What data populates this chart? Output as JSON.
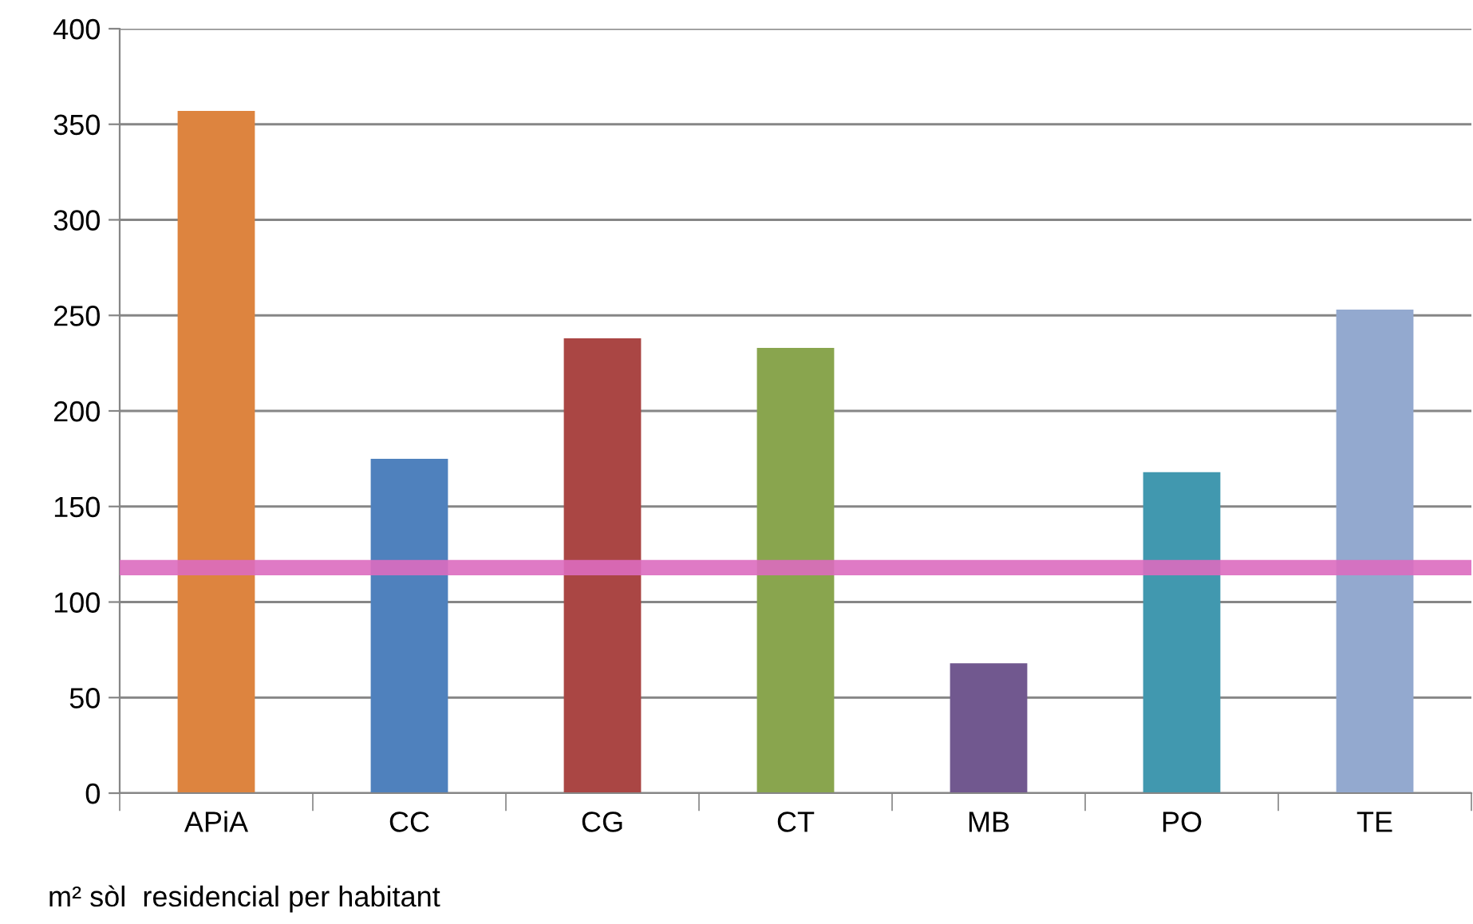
{
  "chart_data": {
    "type": "bar",
    "categories": [
      "APiA",
      "CC",
      "CG",
      "CT",
      "MB",
      "PO",
      "TE"
    ],
    "values": [
      357,
      175,
      238,
      233,
      68,
      168,
      253
    ],
    "colors": [
      "#dd843f",
      "#4f81bd",
      "#aa4644",
      "#89a54e",
      "#71588f",
      "#4198af",
      "#93a9cf"
    ],
    "ylim": [
      0,
      400
    ],
    "yticks": [
      0,
      50,
      100,
      150,
      200,
      250,
      300,
      350,
      400
    ],
    "grid": "y",
    "ref_lines": [
      {
        "axis": "y",
        "value": 118,
        "color": "#dc6bbf"
      }
    ],
    "annotations": [
      "m² sòl  residencial per habitant"
    ]
  }
}
